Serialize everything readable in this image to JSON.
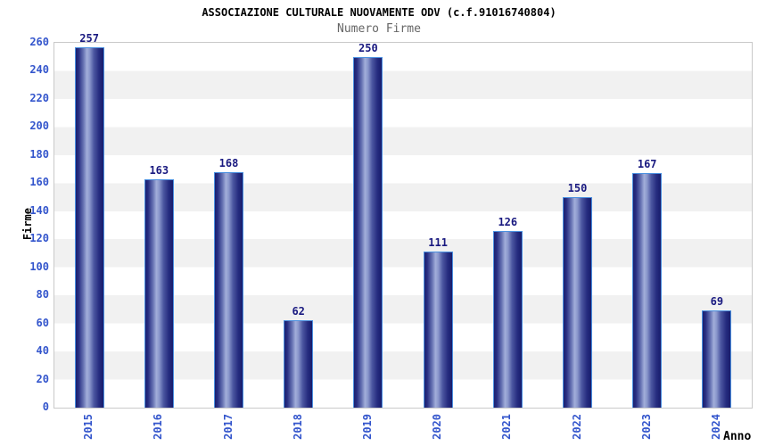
{
  "chart_data": {
    "type": "bar",
    "title": "ASSOCIAZIONE CULTURALE NUOVAMENTE ODV (c.f.91016740804)",
    "subtitle": "Numero Firme",
    "xlabel": "Anno",
    "ylabel": "Firme",
    "categories": [
      "2015",
      "2016",
      "2017",
      "2018",
      "2019",
      "2020",
      "2021",
      "2022",
      "2023",
      "2024"
    ],
    "values": [
      257,
      163,
      168,
      62,
      250,
      111,
      126,
      150,
      167,
      69
    ],
    "ylim": [
      0,
      260
    ],
    "ytick_step": 20,
    "grid": "alternating-horizontal-bands",
    "legend": "none",
    "colors": {
      "tick_label_blue": "#3355cc",
      "value_label_navy": "#191980",
      "bar_dark": "#1b2070",
      "bar_highlight": "#a2aeda",
      "bar_border": "#4a90e0",
      "band_gray": "#f1f1f1",
      "band_white": "#ffffff",
      "plot_border": "#c9c9c9",
      "title_color": "#000000",
      "subtitle_color": "#666666"
    }
  }
}
